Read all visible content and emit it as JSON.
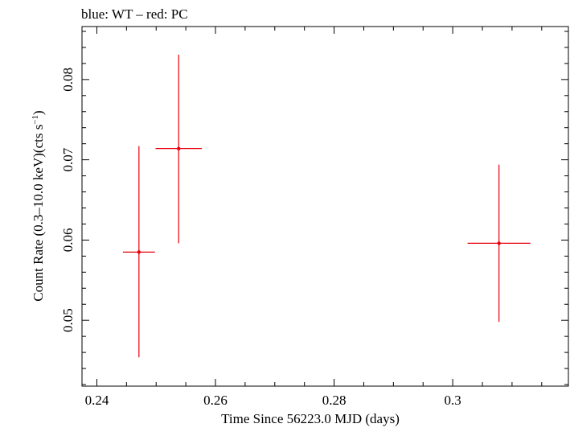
{
  "chart_data": {
    "type": "scatter",
    "title": "blue: WT – red: PC",
    "xlabel": "Time Since 56223.0 MJD (days)",
    "ylabel_main": "Count Rate (0.3–10.0 keV)(cts s",
    "ylabel_sup": "−1",
    "ylabel_tail": ")",
    "xlim": [
      0.2375,
      0.3195
    ],
    "ylim": [
      0.0418,
      0.0866
    ],
    "x_ticks": [
      {
        "value": 0.24,
        "label": "0.24"
      },
      {
        "value": 0.26,
        "label": "0.26"
      },
      {
        "value": 0.28,
        "label": "0.28"
      },
      {
        "value": 0.3,
        "label": "0.3"
      }
    ],
    "y_ticks": [
      {
        "value": 0.05,
        "label": "0.05"
      },
      {
        "value": 0.06,
        "label": "0.06"
      },
      {
        "value": 0.07,
        "label": "0.07"
      },
      {
        "value": 0.08,
        "label": "0.08"
      }
    ],
    "x_minor_step": 0.005,
    "y_minor_step": 0.002,
    "grid": false,
    "series": [
      {
        "color": "#e8000b",
        "points": [
          {
            "x": 0.2471,
            "xerr": 0.0027,
            "y": 0.0585,
            "yerr_low": 0.0131,
            "yerr_high": 0.0132
          },
          {
            "x": 0.2538,
            "xerr": 0.0039,
            "y": 0.0714,
            "yerr_low": 0.0118,
            "yerr_high": 0.0117
          },
          {
            "x": 0.3078,
            "xerr": 0.0053,
            "y": 0.0596,
            "yerr_low": 0.0098,
            "yerr_high": 0.0098
          }
        ]
      }
    ]
  }
}
